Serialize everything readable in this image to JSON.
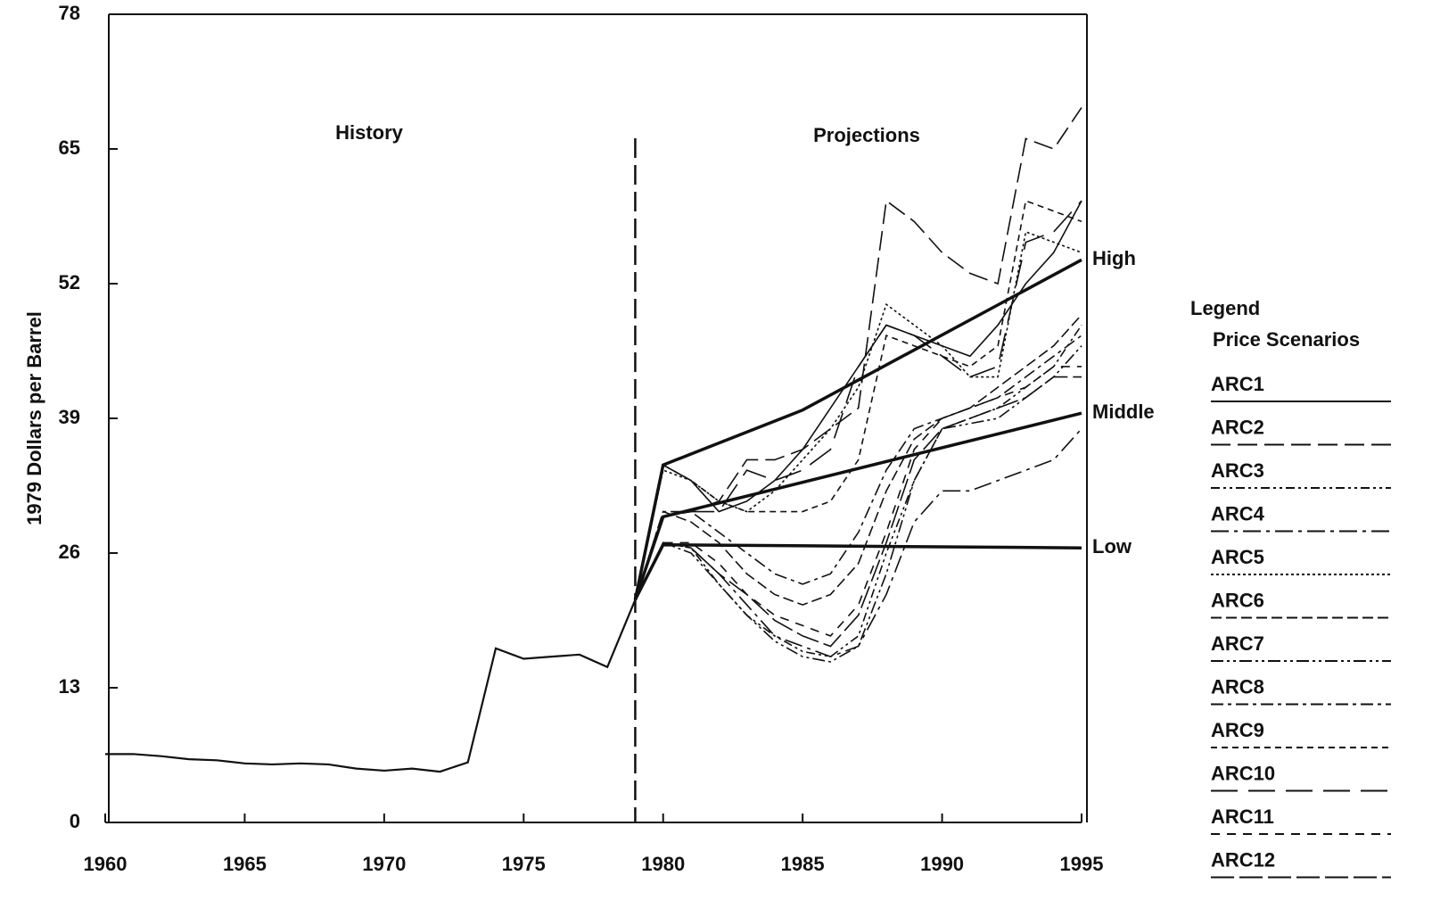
{
  "chart_data": {
    "type": "line",
    "y_label": "1979 Dollars per Barrel",
    "annotations": [
      "History",
      "Projections"
    ],
    "divider_x": 1979,
    "xlim": [
      1960,
      1995
    ],
    "ylim": [
      0,
      78
    ],
    "xticks": [
      1960,
      1965,
      1970,
      1975,
      1980,
      1985,
      1990,
      1995
    ],
    "yticks": [
      0,
      13,
      26,
      39,
      52,
      65,
      78
    ],
    "color": "#111111",
    "legend_title": "Legend",
    "legend_subtitle": "Price Scenarios",
    "legend_position": "right",
    "history": {
      "x": [
        1960,
        1961,
        1962,
        1963,
        1964,
        1965,
        1966,
        1967,
        1968,
        1969,
        1970,
        1971,
        1972,
        1973,
        1974,
        1975,
        1976,
        1977,
        1978,
        1979
      ],
      "values": [
        6.6,
        6.6,
        6.4,
        6.1,
        6.0,
        5.7,
        5.6,
        5.7,
        5.6,
        5.2,
        5.0,
        5.2,
        4.9,
        5.8,
        16.8,
        15.8,
        16.0,
        16.2,
        15.0,
        21.5
      ]
    },
    "scenarios": [
      {
        "name": "High",
        "x": [
          1979,
          1980,
          1985,
          1995
        ],
        "values": [
          21.5,
          34.5,
          39.8,
          54.3
        ]
      },
      {
        "name": "Middle",
        "x": [
          1979,
          1980,
          1995
        ],
        "values": [
          21.5,
          29.5,
          39.5
        ]
      },
      {
        "name": "Low",
        "x": [
          1979,
          1980,
          1995
        ],
        "values": [
          21.5,
          26.8,
          26.5
        ]
      }
    ],
    "projection_years": [
      1979,
      1980,
      1981,
      1982,
      1983,
      1984,
      1985,
      1986,
      1987,
      1988,
      1989,
      1990,
      1991,
      1992,
      1993,
      1994,
      1995
    ],
    "series": [
      {
        "name": "ARC1",
        "dash": "none",
        "values": [
          21.5,
          34.5,
          33,
          30,
          31,
          33,
          36,
          40,
          44,
          48,
          47,
          46,
          45,
          48,
          52,
          55,
          60
        ]
      },
      {
        "name": "ARC2",
        "dash": "22 8",
        "values": [
          21.5,
          29.5,
          30,
          31,
          35,
          35,
          36,
          38,
          40,
          60,
          58,
          55,
          53,
          52,
          66,
          65,
          69
        ]
      },
      {
        "name": "ARC3",
        "dash": "10 4 3 4 3 4",
        "values": [
          21.5,
          27,
          26.5,
          23,
          20,
          18,
          16.5,
          16,
          18,
          26,
          33,
          38,
          39,
          40,
          42,
          44,
          48
        ]
      },
      {
        "name": "ARC4",
        "dash": "20 6 4 6",
        "values": [
          21.5,
          27,
          26.5,
          24,
          21,
          18,
          17,
          16,
          17,
          22,
          29,
          32,
          32,
          33,
          34,
          35,
          38
        ]
      },
      {
        "name": "ARC5",
        "dash": "3 3",
        "values": [
          21.5,
          34,
          33,
          31,
          30,
          32,
          35,
          38,
          42,
          50,
          48,
          46,
          43,
          43,
          57,
          56,
          55
        ]
      },
      {
        "name": "ARC6",
        "dash": "12 5",
        "values": [
          21.5,
          30,
          29,
          27,
          24,
          22,
          21,
          22,
          25,
          32,
          37,
          39,
          40,
          42,
          44,
          46,
          49
        ]
      },
      {
        "name": "ARC7",
        "dash": "14 4 3 4 3 4",
        "values": [
          21.5,
          27,
          26,
          23,
          20,
          17.5,
          16,
          15.5,
          17,
          24,
          33,
          38,
          38.5,
          39,
          41,
          43,
          46
        ]
      },
      {
        "name": "ARC8",
        "dash": "14 5 4 5",
        "values": [
          21.5,
          30,
          30,
          28,
          26,
          24,
          23,
          24,
          28,
          34,
          38,
          39,
          40,
          41,
          43,
          45,
          47
        ]
      },
      {
        "name": "ARC9",
        "dash": "7 5",
        "values": [
          21.5,
          34.5,
          33,
          31,
          30,
          30,
          30,
          31,
          35,
          47,
          46,
          45,
          44,
          46,
          60,
          59,
          58
        ]
      },
      {
        "name": "ARC10",
        "dash": "30 12",
        "values": [
          21.5,
          29.5,
          30,
          30,
          34,
          33,
          34,
          36,
          44,
          48,
          47,
          45,
          43,
          44,
          56,
          57,
          60
        ]
      },
      {
        "name": "ARC11",
        "dash": "10 8",
        "values": [
          21.5,
          27,
          27,
          25,
          22,
          20,
          19,
          18,
          21,
          28,
          36,
          39,
          40,
          41,
          42,
          44,
          44
        ]
      },
      {
        "name": "ARC12",
        "dash": "26 6",
        "values": [
          21.5,
          27,
          26.5,
          24,
          22,
          19.5,
          18,
          17,
          20,
          27,
          35,
          38,
          39,
          40,
          41,
          43,
          43
        ]
      }
    ]
  }
}
